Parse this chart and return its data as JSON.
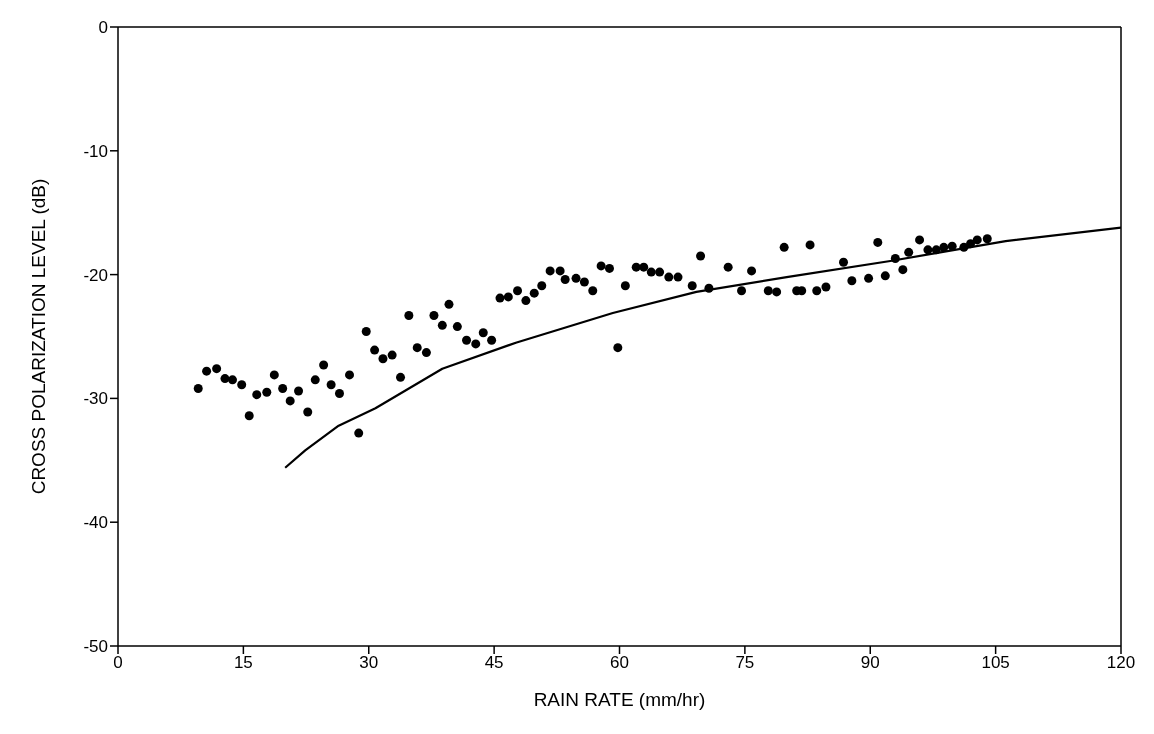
{
  "chart_data": {
    "type": "scatter",
    "xlabel": "RAIN RATE (mm/hr)",
    "ylabel": "CROSS POLARIZATION LEVEL (dB)",
    "xlim": [
      0,
      120
    ],
    "xticks": [
      0,
      15,
      30,
      45,
      60,
      75,
      90,
      105,
      120
    ],
    "ylim": [
      -50,
      0
    ],
    "yticks": [
      -50,
      -40,
      -30,
      -20,
      -10,
      0
    ],
    "grid": false,
    "series": [
      {
        "marker": "circle",
        "color": "#000000",
        "x": [
          9.6,
          10.6,
          11.8,
          12.8,
          13.7,
          14.8,
          15.7,
          16.6,
          17.8,
          18.7,
          19.7,
          20.6,
          21.6,
          22.7,
          23.6,
          24.6,
          25.5,
          26.5,
          27.7,
          28.8,
          29.7,
          30.7,
          31.7,
          32.8,
          33.8,
          34.8,
          35.8,
          36.9,
          37.8,
          38.8,
          39.6,
          40.6,
          41.7,
          42.8,
          43.7,
          44.7,
          45.7,
          46.7,
          47.8,
          48.8,
          49.8,
          50.7,
          51.7,
          52.9,
          53.5,
          54.8,
          55.8,
          56.8,
          57.8,
          58.8,
          59.8,
          60.7,
          62.0,
          62.9,
          63.8,
          64.8,
          65.9,
          67.0,
          68.7,
          69.7,
          70.7,
          73.0,
          74.6,
          75.8,
          77.8,
          78.8,
          79.7,
          81.2,
          81.8,
          82.8,
          83.6,
          84.7,
          86.8,
          87.8,
          89.8,
          90.9,
          91.8,
          93.0,
          93.9,
          94.6,
          95.9,
          96.9,
          97.9,
          98.8,
          99.8,
          101.2,
          102.0,
          102.8,
          104.0
        ],
        "values": [
          -29.2,
          -27.8,
          -27.6,
          -28.4,
          -28.5,
          -28.9,
          -31.4,
          -29.7,
          -29.5,
          -28.1,
          -29.2,
          -30.2,
          -29.4,
          -31.1,
          -28.5,
          -27.3,
          -28.9,
          -29.6,
          -28.1,
          -32.8,
          -24.6,
          -26.1,
          -26.8,
          -26.5,
          -28.3,
          -23.3,
          -25.9,
          -26.3,
          -23.3,
          -24.1,
          -22.4,
          -24.2,
          -25.3,
          -25.6,
          -24.7,
          -25.3,
          -21.9,
          -21.8,
          -21.3,
          -22.1,
          -21.5,
          -20.9,
          -19.7,
          -19.7,
          -20.4,
          -20.3,
          -20.6,
          -21.3,
          -19.3,
          -19.5,
          -25.9,
          -20.9,
          -19.4,
          -19.4,
          -19.8,
          -19.8,
          -20.2,
          -20.2,
          -20.9,
          -18.5,
          -21.1,
          -19.4,
          -21.3,
          -19.7,
          -21.3,
          -21.4,
          -17.8,
          -21.3,
          -21.3,
          -17.6,
          -21.3,
          -21.0,
          -19.0,
          -20.5,
          -20.3,
          -17.4,
          -20.1,
          -18.7,
          -19.6,
          -18.2,
          -17.2,
          -18.0,
          -18.0,
          -17.8,
          -17.7,
          -17.8,
          -17.5,
          -17.2,
          -17.1
        ]
      },
      {
        "type": "line",
        "color": "#000000",
        "x": [
          20,
          22.4,
          26.4,
          30.8,
          38.8,
          47.6,
          59.2,
          69.2,
          80,
          92.4,
          106.2,
          120
        ],
        "values": [
          -35.6,
          -34.2,
          -32.2,
          -30.8,
          -27.6,
          -25.5,
          -23.1,
          -21.4,
          -20.2,
          -18.9,
          -17.3,
          -16.2
        ]
      }
    ]
  }
}
